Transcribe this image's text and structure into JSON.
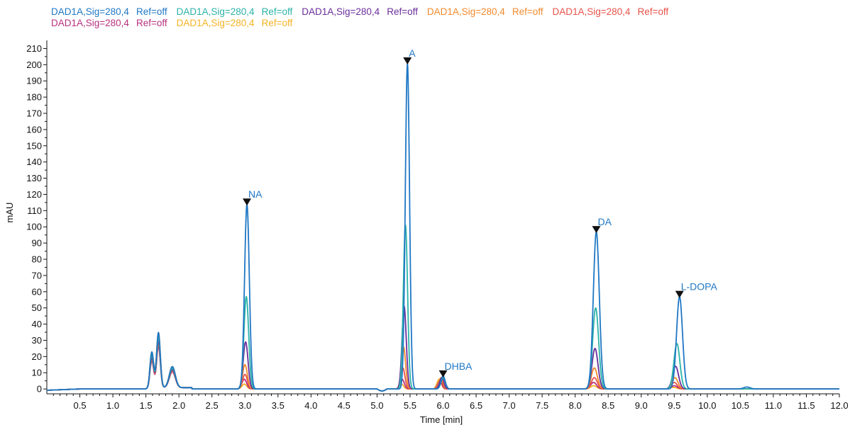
{
  "legend": {
    "rows": [
      [
        {
          "signal": "DAD1A,Sig=280,4",
          "ref": "Ref=off",
          "color": "#1f77c4"
        },
        {
          "signal": "DAD1A,Sig=280,4",
          "ref": "Ref=off",
          "color": "#2bb3a8"
        },
        {
          "signal": "DAD1A,Sig=280,4",
          "ref": "Ref=off",
          "color": "#6a2d9c"
        },
        {
          "signal": "DAD1A,Sig=280,4",
          "ref": "Ref=off",
          "color": "#f28a2c"
        },
        {
          "signal": "DAD1A,Sig=280,4",
          "ref": "Ref=off",
          "color": "#e8534a"
        }
      ],
      [
        {
          "signal": "DAD1A,Sig=280,4",
          "ref": "Ref=off",
          "color": "#b8307e"
        },
        {
          "signal": "DAD1A,Sig=280,4",
          "ref": "Ref=off",
          "color": "#f5b324"
        }
      ]
    ]
  },
  "chart_data": {
    "type": "line",
    "xlabel": "Time [min]",
    "ylabel": "mAU",
    "xlim": [
      0,
      12.0
    ],
    "ylim": [
      -3,
      215
    ],
    "x_ticks": [
      "0.5",
      "1.0",
      "1.5",
      "2.0",
      "2.5",
      "3.0",
      "3.5",
      "4.0",
      "4.5",
      "5.0",
      "5.5",
      "6.0",
      "6.5",
      "7.0",
      "7.5",
      "8.0",
      "8.5",
      "9.0",
      "9.5",
      "10.0",
      "10.5",
      "11.0",
      "11.5",
      "12.0"
    ],
    "y_ticks": [
      0,
      10,
      20,
      30,
      40,
      50,
      60,
      70,
      80,
      90,
      100,
      110,
      120,
      130,
      140,
      150,
      160,
      170,
      180,
      190,
      200,
      210
    ],
    "grid": false,
    "legend_position": "top",
    "peaks": [
      {
        "name": "NA",
        "time": 3.03,
        "height": 114
      },
      {
        "name": "A",
        "time": 5.46,
        "height": 201
      },
      {
        "name": "DHBA",
        "time": 6.0,
        "height": 8
      },
      {
        "name": "DA",
        "time": 8.32,
        "height": 97
      },
      {
        "name": "L-DOPA",
        "time": 9.58,
        "height": 57
      }
    ],
    "series": [
      {
        "color": "#1f77c4",
        "peak_times": [
          3.03,
          5.46,
          6.0,
          8.32,
          9.58
        ],
        "peak_heights": [
          114,
          201,
          8,
          97,
          57
        ]
      },
      {
        "color": "#2bb3a8",
        "peak_times": [
          3.02,
          5.43,
          6.0,
          8.31,
          9.54
        ],
        "peak_heights": [
          57,
          101,
          7,
          50,
          28
        ]
      },
      {
        "color": "#6a2d9c",
        "peak_times": [
          3.01,
          5.41,
          5.98,
          8.3,
          9.52
        ],
        "peak_heights": [
          29,
          51,
          7,
          25,
          14
        ]
      },
      {
        "color": "#f28a2c",
        "peak_times": [
          3.0,
          5.4,
          5.97,
          8.29,
          9.51
        ],
        "peak_heights": [
          15,
          26,
          7,
          13,
          7
        ]
      },
      {
        "color": "#e8534a",
        "peak_times": [
          3.0,
          5.39,
          5.96,
          8.29,
          9.5
        ],
        "peak_heights": [
          9,
          13,
          6,
          7,
          4
        ]
      },
      {
        "color": "#b8307e",
        "peak_times": [
          2.99,
          5.38,
          5.95,
          8.28,
          9.5
        ],
        "peak_heights": [
          6,
          6,
          5,
          4,
          2
        ]
      },
      {
        "color": "#f5b324",
        "peak_times": [
          2.99,
          5.37,
          5.94,
          8.28,
          9.49
        ],
        "peak_heights": [
          3,
          3,
          6,
          2,
          1
        ]
      }
    ],
    "solvent_front": {
      "times": [
        1.59,
        1.69,
        1.9
      ],
      "heights": [
        22,
        34,
        13
      ]
    }
  }
}
